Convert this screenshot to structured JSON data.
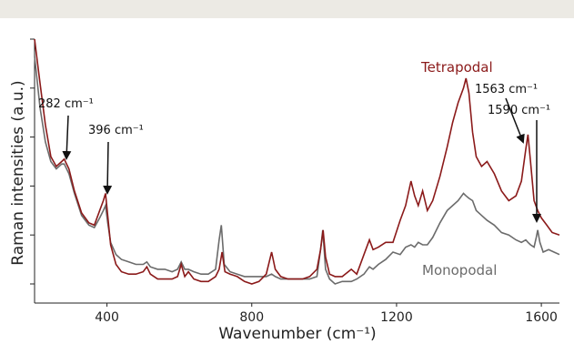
{
  "chart_data": {
    "type": "line",
    "title": "",
    "xlabel": "Wavenumber (cm⁻¹)",
    "ylabel": "Raman intensities (a.u.)",
    "xlim": [
      200,
      1650
    ],
    "ylim": [
      0,
      100
    ],
    "x_ticks": [
      400,
      800,
      1200,
      1600
    ],
    "y_ticks_labeled": false,
    "grid": false,
    "legend": "inline-labels",
    "series": [
      {
        "name": "Tetrapodal",
        "color": "#8b1a1a",
        "points": [
          [
            200,
            100
          ],
          [
            215,
            82
          ],
          [
            230,
            65
          ],
          [
            245,
            52
          ],
          [
            260,
            48
          ],
          [
            275,
            50
          ],
          [
            282,
            51
          ],
          [
            295,
            47
          ],
          [
            310,
            38
          ],
          [
            330,
            29
          ],
          [
            350,
            25
          ],
          [
            365,
            24
          ],
          [
            380,
            30
          ],
          [
            390,
            34
          ],
          [
            396,
            37
          ],
          [
            402,
            28
          ],
          [
            410,
            16
          ],
          [
            425,
            8
          ],
          [
            440,
            5
          ],
          [
            460,
            4
          ],
          [
            480,
            4
          ],
          [
            500,
            5
          ],
          [
            510,
            7
          ],
          [
            520,
            4
          ],
          [
            540,
            2
          ],
          [
            560,
            2
          ],
          [
            580,
            2
          ],
          [
            595,
            3
          ],
          [
            605,
            8
          ],
          [
            615,
            3
          ],
          [
            625,
            5
          ],
          [
            640,
            2
          ],
          [
            660,
            1
          ],
          [
            680,
            1
          ],
          [
            700,
            3
          ],
          [
            710,
            6
          ],
          [
            718,
            13
          ],
          [
            726,
            5
          ],
          [
            740,
            4
          ],
          [
            760,
            3
          ],
          [
            780,
            1
          ],
          [
            800,
            0
          ],
          [
            820,
            1
          ],
          [
            840,
            4
          ],
          [
            855,
            13
          ],
          [
            865,
            6
          ],
          [
            880,
            3
          ],
          [
            900,
            2
          ],
          [
            920,
            2
          ],
          [
            940,
            2
          ],
          [
            960,
            3
          ],
          [
            980,
            6
          ],
          [
            990,
            14
          ],
          [
            997,
            22
          ],
          [
            1004,
            11
          ],
          [
            1015,
            4
          ],
          [
            1030,
            3
          ],
          [
            1050,
            3
          ],
          [
            1075,
            6
          ],
          [
            1090,
            4
          ],
          [
            1110,
            12
          ],
          [
            1125,
            18
          ],
          [
            1135,
            14
          ],
          [
            1150,
            15
          ],
          [
            1170,
            17
          ],
          [
            1190,
            17
          ],
          [
            1210,
            26
          ],
          [
            1225,
            32
          ],
          [
            1240,
            42
          ],
          [
            1250,
            36
          ],
          [
            1260,
            32
          ],
          [
            1272,
            38
          ],
          [
            1285,
            30
          ],
          [
            1300,
            34
          ],
          [
            1320,
            44
          ],
          [
            1340,
            56
          ],
          [
            1355,
            66
          ],
          [
            1370,
            74
          ],
          [
            1385,
            80
          ],
          [
            1392,
            84
          ],
          [
            1400,
            78
          ],
          [
            1410,
            62
          ],
          [
            1420,
            52
          ],
          [
            1435,
            48
          ],
          [
            1450,
            50
          ],
          [
            1470,
            45
          ],
          [
            1490,
            38
          ],
          [
            1510,
            34
          ],
          [
            1530,
            36
          ],
          [
            1545,
            42
          ],
          [
            1557,
            55
          ],
          [
            1563,
            61
          ],
          [
            1570,
            50
          ],
          [
            1580,
            34
          ],
          [
            1590,
            30
          ],
          [
            1600,
            27
          ],
          [
            1615,
            24
          ],
          [
            1630,
            21
          ],
          [
            1650,
            20
          ]
        ]
      },
      {
        "name": "Monopodal",
        "color": "#6b6b6b",
        "points": [
          [
            200,
            93
          ],
          [
            215,
            72
          ],
          [
            230,
            58
          ],
          [
            245,
            50
          ],
          [
            260,
            47
          ],
          [
            275,
            49
          ],
          [
            282,
            49
          ],
          [
            295,
            45
          ],
          [
            310,
            37
          ],
          [
            330,
            28
          ],
          [
            350,
            24
          ],
          [
            365,
            23
          ],
          [
            380,
            27
          ],
          [
            390,
            30
          ],
          [
            396,
            32
          ],
          [
            402,
            25
          ],
          [
            410,
            17
          ],
          [
            425,
            12
          ],
          [
            440,
            10
          ],
          [
            460,
            9
          ],
          [
            480,
            8
          ],
          [
            500,
            8
          ],
          [
            510,
            9
          ],
          [
            520,
            7
          ],
          [
            540,
            6
          ],
          [
            560,
            6
          ],
          [
            580,
            5
          ],
          [
            595,
            6
          ],
          [
            605,
            9
          ],
          [
            615,
            6
          ],
          [
            625,
            6
          ],
          [
            640,
            5
          ],
          [
            660,
            4
          ],
          [
            680,
            4
          ],
          [
            700,
            6
          ],
          [
            710,
            18
          ],
          [
            716,
            24
          ],
          [
            724,
            8
          ],
          [
            740,
            5
          ],
          [
            760,
            4
          ],
          [
            780,
            3
          ],
          [
            800,
            3
          ],
          [
            820,
            3
          ],
          [
            840,
            3
          ],
          [
            855,
            4
          ],
          [
            865,
            3
          ],
          [
            880,
            2
          ],
          [
            900,
            2
          ],
          [
            920,
            2
          ],
          [
            940,
            2
          ],
          [
            960,
            2
          ],
          [
            980,
            3
          ],
          [
            990,
            14
          ],
          [
            996,
            22
          ],
          [
            1004,
            6
          ],
          [
            1015,
            2
          ],
          [
            1030,
            0
          ],
          [
            1050,
            1
          ],
          [
            1075,
            1
          ],
          [
            1090,
            2
          ],
          [
            1110,
            4
          ],
          [
            1125,
            7
          ],
          [
            1135,
            6
          ],
          [
            1150,
            8
          ],
          [
            1170,
            10
          ],
          [
            1190,
            13
          ],
          [
            1210,
            12
          ],
          [
            1225,
            15
          ],
          [
            1240,
            16
          ],
          [
            1250,
            15
          ],
          [
            1260,
            17
          ],
          [
            1272,
            16
          ],
          [
            1285,
            16
          ],
          [
            1300,
            19
          ],
          [
            1320,
            25
          ],
          [
            1340,
            30
          ],
          [
            1355,
            32
          ],
          [
            1370,
            34
          ],
          [
            1385,
            37
          ],
          [
            1392,
            36
          ],
          [
            1400,
            35
          ],
          [
            1410,
            34
          ],
          [
            1420,
            30
          ],
          [
            1435,
            28
          ],
          [
            1450,
            26
          ],
          [
            1470,
            24
          ],
          [
            1490,
            21
          ],
          [
            1510,
            20
          ],
          [
            1530,
            18
          ],
          [
            1545,
            17
          ],
          [
            1557,
            18
          ],
          [
            1563,
            17
          ],
          [
            1570,
            16
          ],
          [
            1580,
            15
          ],
          [
            1586,
            19
          ],
          [
            1590,
            22
          ],
          [
            1596,
            17
          ],
          [
            1605,
            13
          ],
          [
            1620,
            14
          ],
          [
            1635,
            13
          ],
          [
            1650,
            12
          ]
        ]
      }
    ],
    "annotations": [
      {
        "label": "282 cm⁻¹",
        "x": 282
      },
      {
        "label": "396 cm⁻¹",
        "x": 396
      },
      {
        "label": "1563 cm⁻¹",
        "x": 1563
      },
      {
        "label": "1590 cm⁻¹",
        "x": 1590
      }
    ]
  }
}
